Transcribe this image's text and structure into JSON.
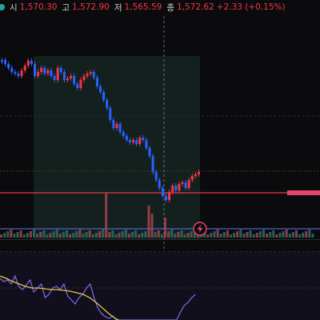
{
  "ohlc": {
    "open_label": "시",
    "open": "1,570.30",
    "high_label": "고",
    "high": "1,572.90",
    "low_label": "저",
    "low": "1,565.59",
    "close_label": "종",
    "close": "1,572.62",
    "change": "+2.33 (+0.15%)"
  },
  "icons": {
    "alert": "lightning-bolt-icon"
  },
  "colors": {
    "up": "#f23645",
    "down": "#2962ff",
    "volume_up": "#f23645",
    "volume_down": "#26a69a",
    "pink_line": "#f23645",
    "blue_line": "#4a63d6",
    "highlight": "#1b2a28",
    "rsi": "#7c6cf0",
    "rsi_ma": "#e2c44b"
  }
}
